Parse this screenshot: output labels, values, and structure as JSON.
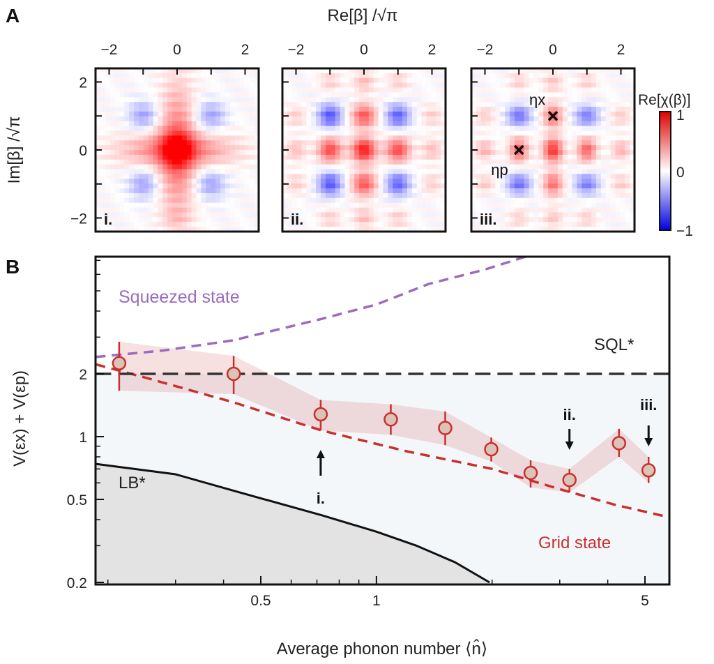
{
  "figure": {
    "panel_a_letter": "A",
    "panel_b_letter": "B"
  },
  "chart_data": [
    {
      "type": "heatmap",
      "title": "Re[β] /√π",
      "xlabel": "Re[β] /√π",
      "ylabel": "Im[β] /√π",
      "xticks": [
        "−2",
        "0",
        "2"
      ],
      "yticks": [
        "2",
        "0",
        "−2"
      ],
      "xlim": [
        -2.4,
        2.4
      ],
      "ylim": [
        -2.4,
        2.4
      ],
      "colorbar": {
        "label": "Re[χ(β)]",
        "ticks": [
          "1",
          "0",
          "−1"
        ],
        "range": [
          -1,
          1
        ],
        "pos_color": "#e00000",
        "neg_color": "#0000e0"
      },
      "panels": [
        {
          "label": "i.",
          "peaks": [
            [
              0,
              0,
              0.55,
              0.35,
              1.3
            ],
            [
              0,
              0,
              0.55,
              1.1,
              0.35
            ],
            [
              0,
              0,
              0.35,
              0.3,
              0.3
            ],
            [
              -1,
              1,
              -0.35,
              0.3,
              0.3
            ],
            [
              1,
              1,
              -0.35,
              0.3,
              0.3
            ],
            [
              -1,
              -1,
              -0.35,
              0.3,
              0.3
            ],
            [
              1,
              -1,
              -0.35,
              0.3,
              0.3
            ],
            [
              0,
              -2,
              0.12,
              0.3,
              0.2
            ]
          ]
        },
        {
          "label": "ii.",
          "peaks": [
            [
              0,
              0,
              0.9,
              0.25,
              0.25
            ],
            [
              -1,
              0,
              0.7,
              0.25,
              0.25
            ],
            [
              1,
              0,
              0.7,
              0.25,
              0.25
            ],
            [
              0,
              1,
              0.65,
              0.25,
              0.25
            ],
            [
              0,
              -1,
              0.65,
              0.25,
              0.25
            ],
            [
              -1,
              1,
              -0.65,
              0.25,
              0.25
            ],
            [
              1,
              1,
              -0.6,
              0.25,
              0.25
            ],
            [
              -1,
              -1,
              -0.65,
              0.25,
              0.25
            ],
            [
              1,
              -1,
              -0.6,
              0.25,
              0.25
            ],
            [
              -2,
              0,
              0.25,
              0.22,
              0.22
            ],
            [
              2,
              0,
              0.25,
              0.22,
              0.22
            ],
            [
              0,
              2,
              0.25,
              0.22,
              0.22
            ],
            [
              0,
              -2,
              0.25,
              0.22,
              0.22
            ],
            [
              -2,
              1,
              0.18,
              0.22,
              0.22
            ],
            [
              2,
              1,
              0.18,
              0.22,
              0.22
            ],
            [
              -2,
              -1,
              0.18,
              0.22,
              0.22
            ],
            [
              2,
              -1,
              0.18,
              0.22,
              0.22
            ],
            [
              -1,
              2,
              0.18,
              0.22,
              0.22
            ],
            [
              1,
              2,
              0.18,
              0.22,
              0.22
            ],
            [
              -1,
              -2,
              0.18,
              0.22,
              0.22
            ],
            [
              1,
              -2,
              0.18,
              0.22,
              0.22
            ]
          ]
        },
        {
          "label": "iii.",
          "peaks": [
            [
              0,
              0,
              0.8,
              0.2,
              0.25
            ],
            [
              -1,
              0,
              0.6,
              0.2,
              0.25
            ],
            [
              1,
              0,
              0.6,
              0.2,
              0.25
            ],
            [
              0,
              1,
              0.55,
              0.2,
              0.25
            ],
            [
              0,
              -1,
              0.55,
              0.2,
              0.25
            ],
            [
              -1,
              1,
              -0.55,
              0.25,
              0.22
            ],
            [
              1,
              1,
              -0.5,
              0.25,
              0.22
            ],
            [
              -1,
              -1,
              -0.55,
              0.25,
              0.22
            ],
            [
              1,
              -1,
              -0.5,
              0.25,
              0.22
            ],
            [
              -2,
              0,
              0.3,
              0.2,
              0.2
            ],
            [
              2,
              0,
              0.3,
              0.2,
              0.2
            ],
            [
              0,
              2,
              0.22,
              0.2,
              0.2
            ],
            [
              0,
              -2,
              0.22,
              0.2,
              0.2
            ],
            [
              -2,
              1,
              0.2,
              0.2,
              0.2
            ],
            [
              2,
              1,
              0.2,
              0.2,
              0.2
            ],
            [
              -2,
              -1,
              0.2,
              0.2,
              0.2
            ],
            [
              2,
              -1,
              0.2,
              0.2,
              0.2
            ],
            [
              -1,
              2,
              0.18,
              0.2,
              0.2
            ],
            [
              1,
              2,
              0.18,
              0.2,
              0.2
            ],
            [
              -1,
              -2,
              0.18,
              0.2,
              0.2
            ],
            [
              1,
              -2,
              0.18,
              0.2,
              0.2
            ]
          ],
          "markers": [
            {
              "label": "ηx",
              "x": 0,
              "y": 1
            },
            {
              "label": "ηp",
              "x": -1,
              "y": 0
            }
          ]
        }
      ]
    },
    {
      "type": "scatter",
      "xscale": "log",
      "yscale": "log",
      "xlabel": "Average phonon number ⟨n̂⟩",
      "ylabel": "V(εx) + V(εp)",
      "xlim": [
        0.186,
        5.8
      ],
      "ylim": [
        0.2,
        7.3
      ],
      "xticks": [
        {
          "v": 0.5,
          "label": "0.5"
        },
        {
          "v": 1,
          "label": "1"
        },
        {
          "v": 5,
          "label": "5"
        }
      ],
      "yticks": [
        {
          "v": 0.2,
          "label": "0.2"
        },
        {
          "v": 0.5,
          "label": "0.5"
        },
        {
          "v": 1,
          "label": "1"
        },
        {
          "v": 2,
          "label": "2"
        }
      ],
      "data": {
        "x": [
          0.214,
          0.425,
          0.716,
          1.09,
          1.51,
          1.99,
          2.52,
          3.18,
          4.28,
          5.11
        ],
        "y": [
          2.25,
          2.0,
          1.28,
          1.21,
          1.1,
          0.87,
          0.67,
          0.62,
          0.93,
          0.69
        ],
        "y_low": [
          1.66,
          1.6,
          1.07,
          1.02,
          0.91,
          0.76,
          0.57,
          0.54,
          0.8,
          0.6
        ],
        "y_high": [
          2.85,
          2.44,
          1.5,
          1.43,
          1.32,
          0.99,
          0.77,
          0.7,
          1.09,
          0.8
        ],
        "color": "#c8302c"
      },
      "curves": [
        {
          "name": "Squeezed state",
          "style": "dashed",
          "color": "#9b6bbf",
          "x": [
            0.186,
            0.28,
            0.425,
            0.72,
            1.0,
            1.37,
            1.9,
            2.45
          ],
          "y": [
            2.41,
            2.59,
            2.9,
            3.67,
            4.3,
            5.4,
            6.3,
            7.3
          ]
        },
        {
          "name": "Grid state",
          "style": "dashed",
          "color": "#c8302c",
          "x": [
            0.186,
            0.25,
            0.425,
            0.72,
            1.2,
            2.0,
            3.0,
            4.2,
            5.8
          ],
          "y": [
            2.22,
            1.92,
            1.46,
            1.07,
            0.85,
            0.7,
            0.56,
            0.47,
            0.41
          ]
        },
        {
          "name": "SQL*",
          "style": "dashed",
          "color": "#333333",
          "x": [
            0.186,
            5.8
          ],
          "y": [
            2,
            2
          ]
        },
        {
          "name": "LB*",
          "style": "solid",
          "color": "#111111",
          "x": [
            0.186,
            0.3,
            0.425,
            0.72,
            1.0,
            1.27,
            1.6,
            1.97
          ],
          "y": [
            0.74,
            0.66,
            0.55,
            0.42,
            0.35,
            0.3,
            0.25,
            0.2
          ]
        }
      ],
      "annotations": [
        {
          "text": "Squeezed state",
          "color": "#9b6bbf"
        },
        {
          "text": "SQL*",
          "color": "#222222"
        },
        {
          "text": "LB*",
          "color": "#222222"
        },
        {
          "text": "Grid state",
          "color": "#c8302c"
        },
        {
          "text": "i.",
          "arrow": "up",
          "x": 0.716
        },
        {
          "text": "ii.",
          "arrow": "down",
          "x": 3.18
        },
        {
          "text": "iii.",
          "arrow": "down",
          "x": 5.11
        }
      ]
    }
  ]
}
